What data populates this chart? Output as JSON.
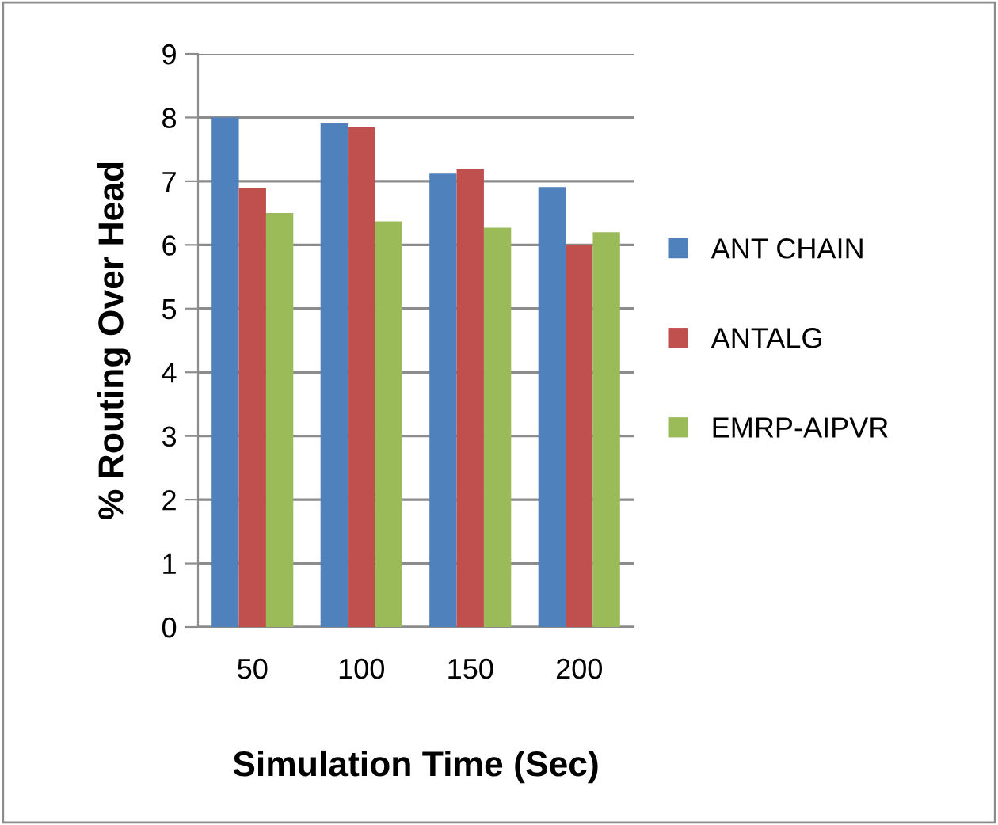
{
  "chart_data": {
    "type": "bar",
    "xlabel": "Simulation Time (Sec)",
    "ylabel": "% Routing Over Head",
    "categories": [
      "50",
      "100",
      "150",
      "200"
    ],
    "series": [
      {
        "name": "ANT CHAIN",
        "color": "#4f81bd",
        "values": [
          8.0,
          7.92,
          7.12,
          6.91
        ]
      },
      {
        "name": "ANTALG",
        "color": "#c0504d",
        "values": [
          6.9,
          7.85,
          7.19,
          6.0
        ]
      },
      {
        "name": "EMRP-AIPVR",
        "color": "#9bbb59",
        "values": [
          6.5,
          6.37,
          6.27,
          6.2
        ]
      }
    ],
    "ylim": [
      0,
      9
    ],
    "yticks": [
      0,
      1,
      2,
      3,
      4,
      5,
      6,
      7,
      8,
      9
    ],
    "grid": "y",
    "legend": "right"
  }
}
